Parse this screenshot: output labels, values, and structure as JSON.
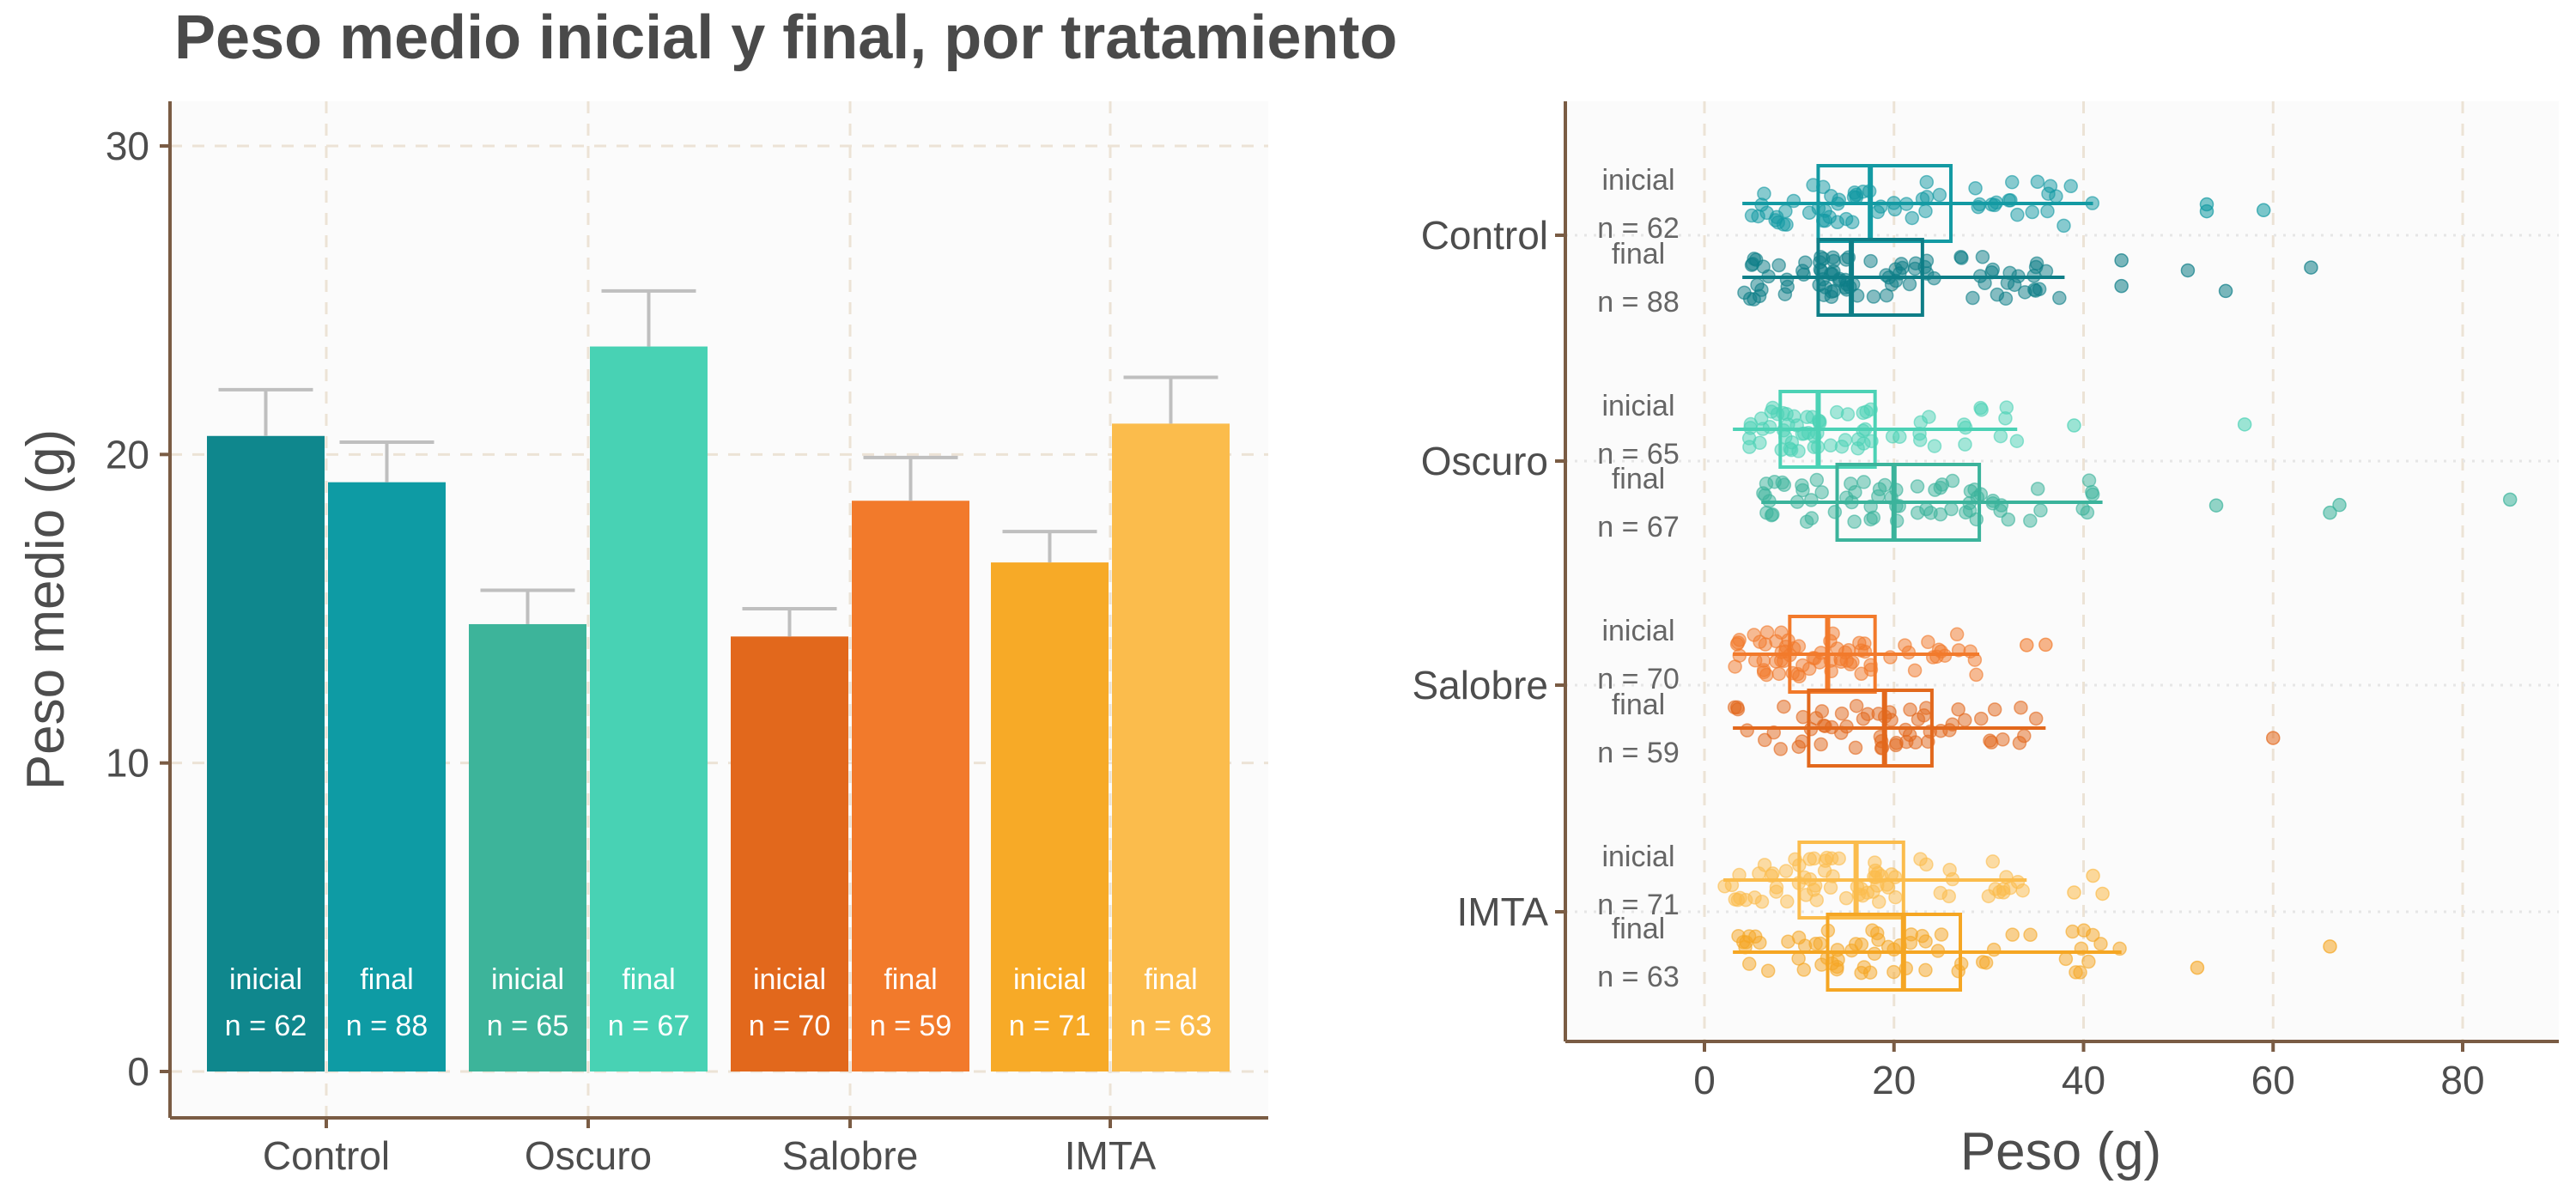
{
  "title": "Peso medio inicial y final, por tratamiento",
  "chart_data": [
    {
      "type": "bar",
      "ylabel": "Peso medio (g)",
      "xlabel": "",
      "ylim": [
        0,
        31
      ],
      "yticks": [
        0,
        10,
        20,
        30
      ],
      "categories": [
        "Control",
        "Oscuro",
        "Salobre",
        "IMTA"
      ],
      "grid": true,
      "bars": [
        {
          "category": "Control",
          "stage": "inicial",
          "n_label": "n = 62",
          "value": 20.6,
          "err": 1.5,
          "color": "#0f878d"
        },
        {
          "category": "Control",
          "stage": "final",
          "n_label": "n = 88",
          "value": 19.1,
          "err": 1.3,
          "color": "#0e9ba4"
        },
        {
          "category": "Oscuro",
          "stage": "inicial",
          "n_label": "n = 65",
          "value": 14.5,
          "err": 1.1,
          "color": "#3db49a"
        },
        {
          "category": "Oscuro",
          "stage": "final",
          "n_label": "n = 67",
          "value": 23.5,
          "err": 1.8,
          "color": "#48d2b4"
        },
        {
          "category": "Salobre",
          "stage": "inicial",
          "n_label": "n = 70",
          "value": 14.1,
          "err": 0.9,
          "color": "#e2681c"
        },
        {
          "category": "Salobre",
          "stage": "final",
          "n_label": "n = 59",
          "value": 18.5,
          "err": 1.4,
          "color": "#f27a2b"
        },
        {
          "category": "IMTA",
          "stage": "inicial",
          "n_label": "n = 71",
          "value": 16.5,
          "err": 1.0,
          "color": "#f7aa27"
        },
        {
          "category": "IMTA",
          "stage": "final",
          "n_label": "n = 63",
          "value": 21.0,
          "err": 1.5,
          "color": "#fbbc4c"
        }
      ]
    },
    {
      "type": "boxplot",
      "xlabel": "Peso (g)",
      "xlim": [
        -15,
        90
      ],
      "xticks": [
        0,
        20,
        40,
        60,
        80
      ],
      "categories": [
        "Control",
        "Oscuro",
        "Salobre",
        "IMTA"
      ],
      "grid": true,
      "groups": [
        {
          "category": "Control",
          "stage": "inicial",
          "n_label": "n = 62",
          "color": "#139aa3",
          "box": [
            4,
            12,
            17.5,
            26,
            41
          ],
          "outliers": [
            53,
            53,
            59
          ]
        },
        {
          "category": "Control",
          "stage": "final",
          "n_label": "n = 88",
          "color": "#0e7e87",
          "box": [
            4,
            12,
            15.5,
            23,
            38
          ],
          "outliers": [
            44,
            44,
            51,
            55,
            64
          ]
        },
        {
          "category": "Oscuro",
          "stage": "inicial",
          "n_label": "n = 65",
          "color": "#4cd2b5",
          "box": [
            3,
            8,
            12,
            18,
            33
          ],
          "outliers": [
            39,
            57
          ]
        },
        {
          "category": "Oscuro",
          "stage": "final",
          "n_label": "n = 67",
          "color": "#3bb39b",
          "box": [
            6,
            14,
            20,
            29,
            42
          ],
          "outliers": [
            54,
            66,
            67,
            85
          ]
        },
        {
          "category": "Salobre",
          "stage": "inicial",
          "n_label": "n = 70",
          "color": "#f27a2b",
          "box": [
            3,
            9,
            13,
            18,
            29
          ],
          "outliers": [
            34,
            36
          ]
        },
        {
          "category": "Salobre",
          "stage": "final",
          "n_label": "n = 59",
          "color": "#e2681c",
          "box": [
            3,
            11,
            19,
            24,
            36
          ],
          "outliers": [
            60
          ]
        },
        {
          "category": "IMTA",
          "stage": "inicial",
          "n_label": "n = 71",
          "color": "#fbbc4c",
          "box": [
            2,
            10,
            16,
            21,
            34
          ],
          "outliers": [
            39,
            41,
            42
          ]
        },
        {
          "category": "IMTA",
          "stage": "final",
          "n_label": "n = 63",
          "color": "#f5a623",
          "box": [
            3,
            13,
            21,
            27,
            44
          ],
          "outliers": [
            52,
            66
          ]
        }
      ]
    }
  ]
}
